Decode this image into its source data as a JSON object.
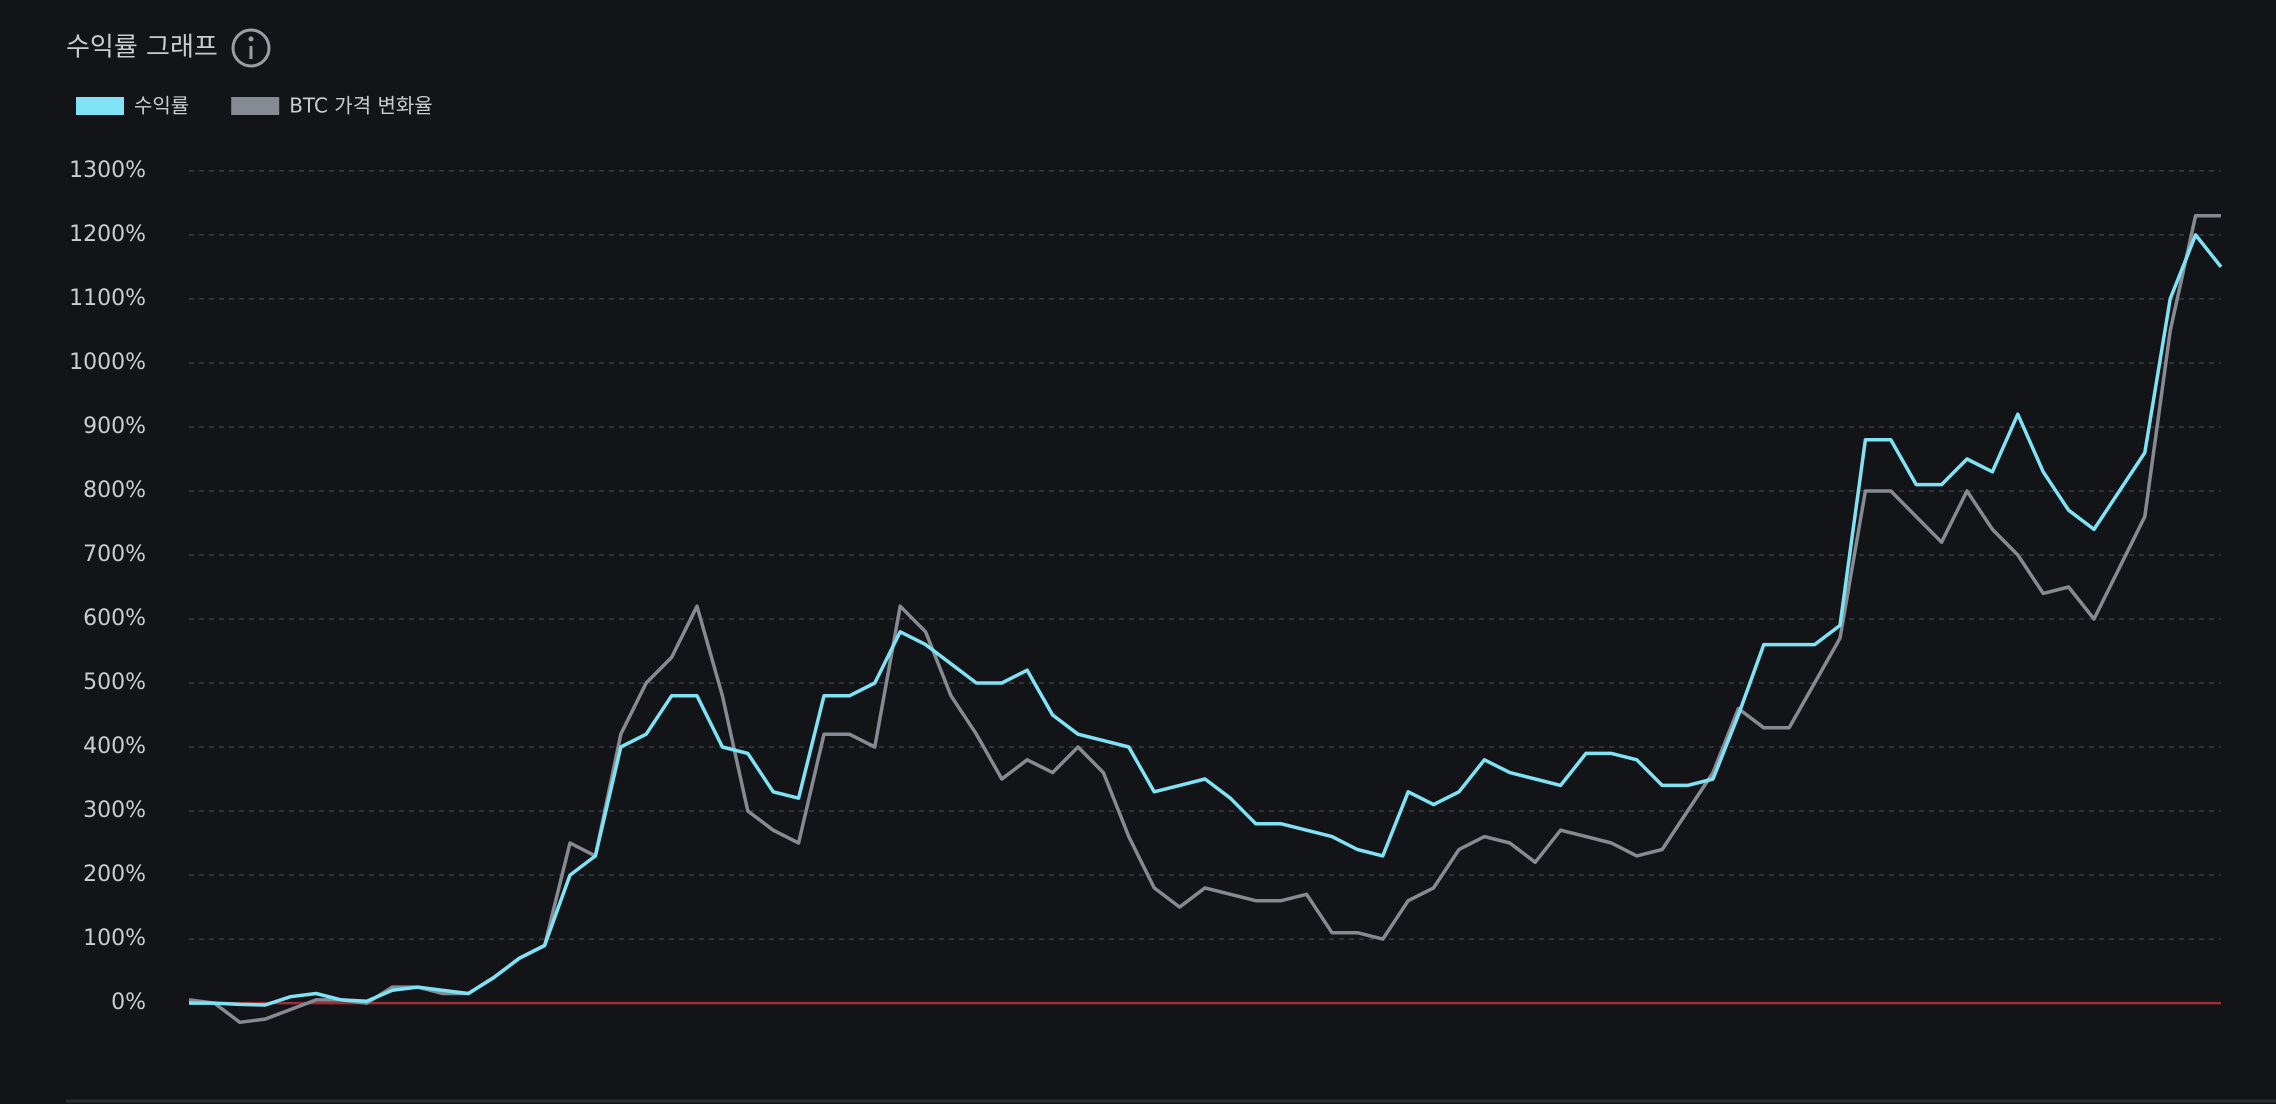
{
  "chart_data": {
    "type": "line",
    "title": "수익률 그래프",
    "series": [
      {
        "name": "수익률",
        "color": "#7fe3f5",
        "values": [
          0,
          0,
          -2,
          -3,
          10,
          15,
          5,
          3,
          20,
          25,
          20,
          15,
          40,
          70,
          90,
          200,
          230,
          400,
          420,
          480,
          480,
          400,
          390,
          330,
          320,
          480,
          480,
          500,
          580,
          560,
          530,
          500,
          500,
          520,
          450,
          420,
          410,
          400,
          330,
          340,
          350,
          320,
          280,
          280,
          270,
          260,
          240,
          230,
          330,
          310,
          330,
          380,
          360,
          350,
          340,
          390,
          390,
          380,
          340,
          340,
          350,
          450,
          560,
          560,
          560,
          590,
          880,
          880,
          810,
          810,
          850,
          830,
          920,
          830,
          770,
          740,
          800,
          860,
          1100,
          1200,
          1150
        ]
      },
      {
        "name": "BTC 가격 변화율",
        "color": "#868a92",
        "values": [
          5,
          0,
          -30,
          -25,
          -10,
          5,
          5,
          0,
          25,
          25,
          15,
          15,
          40,
          70,
          90,
          250,
          230,
          420,
          500,
          540,
          620,
          480,
          300,
          270,
          250,
          420,
          420,
          400,
          620,
          580,
          480,
          420,
          350,
          380,
          360,
          400,
          360,
          260,
          180,
          150,
          180,
          170,
          160,
          160,
          170,
          110,
          110,
          100,
          160,
          180,
          240,
          260,
          250,
          220,
          270,
          260,
          250,
          230,
          240,
          300,
          360,
          460,
          430,
          430,
          500,
          570,
          800,
          800,
          760,
          720,
          800,
          740,
          700,
          640,
          650,
          600,
          680,
          760,
          1050,
          1230,
          1230
        ]
      }
    ],
    "ylim": [
      -140,
      1380
    ],
    "yticks": [
      {
        "value": 0,
        "label": "0%"
      },
      {
        "value": 100,
        "label": "100%"
      },
      {
        "value": 200,
        "label": "200%"
      },
      {
        "value": 300,
        "label": "300%"
      },
      {
        "value": 400,
        "label": "400%"
      },
      {
        "value": 500,
        "label": "500%"
      },
      {
        "value": 600,
        "label": "600%"
      },
      {
        "value": 700,
        "label": "700%"
      },
      {
        "value": 800,
        "label": "800%"
      },
      {
        "value": 900,
        "label": "900%"
      },
      {
        "value": 1000,
        "label": "1000%"
      },
      {
        "value": 1100,
        "label": "1100%"
      },
      {
        "value": 1200,
        "label": "1200%"
      },
      {
        "value": 1300,
        "label": "1300%"
      }
    ],
    "grid": true
  }
}
